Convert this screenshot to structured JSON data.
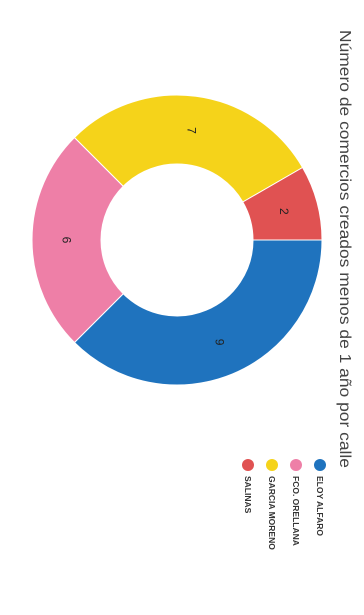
{
  "chart_data": {
    "type": "pie",
    "title": "Número de comercios creados menos de 1 año por calle",
    "categories": [
      "ELOY ALFARO",
      "FCO. ORELLANA",
      "GARCIA MORENO",
      "SALINAS"
    ],
    "values": [
      9,
      6,
      7,
      2
    ],
    "colors": [
      "#1f73be",
      "#ee7fa7",
      "#f5d31a",
      "#e05252"
    ],
    "donut": true,
    "legend_position": "right",
    "data_labels": true,
    "orientation": "rotated-90-clockwise"
  }
}
